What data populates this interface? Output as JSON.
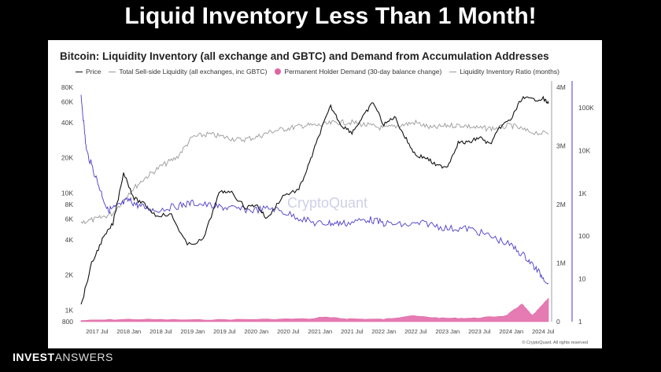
{
  "slide": {
    "title": "Liquid Inventory Less Than 1 Month!"
  },
  "brand": {
    "bold": "INVEST",
    "light": "ANSWERS"
  },
  "watermark": "CryptoQuant",
  "credit": "© CryptoQuant. All rights reserved",
  "colors": {
    "price": "#111111",
    "liquidity": "#9a9a9a",
    "demand": "#e064a4",
    "ratio": "#4a3cc8"
  },
  "chart_data": {
    "type": "line",
    "title": "Bitcoin: Liquidity Inventory (all exchange and GBTC) and Demand from Accumulation Addresses",
    "legend": [
      "Price",
      "Total Sell-side Liquidity (all exchanges, inc GBTC)",
      "Permanent Holder Demand (30-day balance change)",
      "Liquidity Inventory Ratio (months)"
    ],
    "x_ticks": [
      "2017 Jul",
      "2018 Jan",
      "2018 Jul",
      "2019 Jan",
      "2019 Jul",
      "2020 Jan",
      "2020 Jul",
      "2021 Jan",
      "2021 Jul",
      "2022 Jan",
      "2022 Jul",
      "2023 Jan",
      "2023 Jul",
      "2024 Jan",
      "2024 Jul"
    ],
    "x_range": [
      "2017-04",
      "2024-08"
    ],
    "y_left_ticks": [
      "80K",
      "60K",
      "40K",
      "20K",
      "10K",
      "8K",
      "6K",
      "4K",
      "2K",
      "1K",
      "800"
    ],
    "y_left_scale": "log",
    "y_left_range": [
      800,
      80000
    ],
    "y_right1_ticks": [
      "4M",
      "3M",
      "2M",
      "1M",
      "0"
    ],
    "y_right1_range": [
      0,
      4000000
    ],
    "y_right2_ticks": [
      "100K",
      "10K",
      "1K",
      "100",
      "10",
      "1"
    ],
    "y_right2_scale": "log",
    "y_right2_range": [
      1,
      300000
    ],
    "series": [
      {
        "name": "Price",
        "axis": "left",
        "x": [
          "2017-04",
          "2017-06",
          "2017-08",
          "2017-10",
          "2017-12",
          "2018-02",
          "2018-04",
          "2018-06",
          "2018-09",
          "2018-12",
          "2019-03",
          "2019-06",
          "2019-08",
          "2019-11",
          "2020-01",
          "2020-03",
          "2020-06",
          "2020-09",
          "2020-11",
          "2021-01",
          "2021-03",
          "2021-05",
          "2021-07",
          "2021-09",
          "2021-11",
          "2022-01",
          "2022-03",
          "2022-05",
          "2022-07",
          "2022-09",
          "2022-11",
          "2023-01",
          "2023-03",
          "2023-05",
          "2023-07",
          "2023-09",
          "2023-11",
          "2024-01",
          "2024-03",
          "2024-05",
          "2024-07",
          "2024-08"
        ],
        "values": [
          1100,
          2500,
          4000,
          5500,
          15000,
          9000,
          8000,
          6500,
          6500,
          3600,
          4000,
          10000,
          10500,
          7500,
          8000,
          6000,
          9500,
          10700,
          18000,
          33000,
          55000,
          38000,
          33000,
          44000,
          60000,
          38000,
          45000,
          30000,
          21000,
          20000,
          17000,
          17000,
          27000,
          27000,
          30000,
          26000,
          37000,
          43000,
          65000,
          63000,
          64000,
          58000
        ]
      },
      {
        "name": "Total Sell-side Liquidity (all exchanges, inc GBTC)",
        "axis": "right1",
        "x": [
          "2017-04",
          "2017-07",
          "2017-10",
          "2018-01",
          "2018-04",
          "2018-07",
          "2018-10",
          "2019-01",
          "2019-04",
          "2019-07",
          "2019-10",
          "2020-01",
          "2020-04",
          "2020-07",
          "2020-10",
          "2021-01",
          "2021-04",
          "2021-07",
          "2021-10",
          "2022-01",
          "2022-04",
          "2022-07",
          "2022-10",
          "2023-01",
          "2023-04",
          "2023-07",
          "2023-10",
          "2024-01",
          "2024-04",
          "2024-08"
        ],
        "values": [
          1700000,
          1750000,
          1850000,
          2200000,
          2450000,
          2650000,
          2800000,
          3150000,
          3200000,
          3150000,
          3100000,
          3150000,
          3250000,
          3300000,
          3350000,
          3350000,
          3400000,
          3400000,
          3350000,
          3300000,
          3350000,
          3400000,
          3300000,
          3350000,
          3350000,
          3300000,
          3300000,
          3350000,
          3250000,
          3200000
        ]
      },
      {
        "name": "Permanent Holder Demand (30-day balance change)",
        "axis": "right1",
        "x": [
          "2017-04",
          "2018-01",
          "2019-01",
          "2020-01",
          "2020-12",
          "2021-01",
          "2021-06",
          "2022-01",
          "2022-06",
          "2022-12",
          "2023-06",
          "2023-12",
          "2024-03",
          "2024-05",
          "2024-08"
        ],
        "values": [
          20000,
          40000,
          30000,
          40000,
          50000,
          80000,
          50000,
          40000,
          100000,
          60000,
          60000,
          100000,
          300000,
          100000,
          400000
        ]
      },
      {
        "name": "Liquidity Inventory Ratio (months)",
        "axis": "right2",
        "x": [
          "2017-04",
          "2017-05",
          "2017-07",
          "2017-09",
          "2017-11",
          "2018-01",
          "2018-03",
          "2018-06",
          "2018-10",
          "2019-01",
          "2019-05",
          "2019-08",
          "2019-12",
          "2020-04",
          "2020-08",
          "2020-12",
          "2021-03",
          "2021-06",
          "2021-10",
          "2022-01",
          "2022-05",
          "2022-09",
          "2023-01",
          "2023-05",
          "2023-09",
          "2024-01",
          "2024-04",
          "2024-06",
          "2024-08"
        ],
        "values": [
          200000,
          10000,
          2000,
          400,
          500,
          700,
          500,
          400,
          500,
          600,
          500,
          450,
          400,
          450,
          300,
          200,
          200,
          200,
          250,
          200,
          180,
          200,
          150,
          150,
          100,
          60,
          30,
          15,
          8
        ]
      }
    ]
  }
}
